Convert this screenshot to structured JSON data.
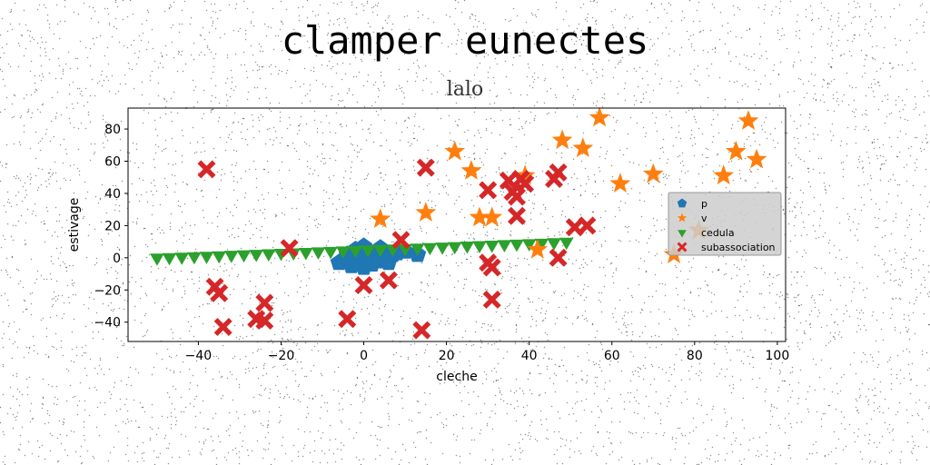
{
  "chart_data": {
    "type": "scatter",
    "title": "clamper eunectes",
    "subtitle": "lalo",
    "xlabel": "cleche",
    "ylabel": "estivage",
    "xlim": [
      -57,
      102
    ],
    "ylim": [
      -52,
      93
    ],
    "xticks": [
      -40,
      -20,
      0,
      20,
      40,
      60,
      80,
      100
    ],
    "yticks": [
      -40,
      -20,
      0,
      20,
      40,
      60,
      80
    ],
    "legend_position": "center-right",
    "series": [
      {
        "name": "p",
        "marker": "pentagon",
        "color": "#1f77b4",
        "points": [
          [
            -6,
            -3
          ],
          [
            -4,
            2
          ],
          [
            -2,
            5
          ],
          [
            0,
            7
          ],
          [
            1,
            3
          ],
          [
            -1,
            -2
          ],
          [
            0,
            -6
          ],
          [
            2,
            -4
          ],
          [
            3,
            2
          ],
          [
            4,
            6
          ],
          [
            5,
            3
          ],
          [
            6,
            -3
          ],
          [
            7,
            2
          ],
          [
            8,
            3
          ],
          [
            10,
            4
          ],
          [
            -3,
            -5
          ],
          [
            4,
            -2
          ],
          [
            13,
            2
          ]
        ]
      },
      {
        "name": "v",
        "marker": "star",
        "color": "#ff7f0e",
        "points": [
          [
            4,
            24
          ],
          [
            15,
            28
          ],
          [
            22,
            66
          ],
          [
            26,
            54
          ],
          [
            28,
            25
          ],
          [
            31,
            25
          ],
          [
            39,
            51
          ],
          [
            42,
            5
          ],
          [
            48,
            73
          ],
          [
            53,
            68
          ],
          [
            57,
            87
          ],
          [
            62,
            46
          ],
          [
            70,
            52
          ],
          [
            75,
            2
          ],
          [
            81,
            17
          ],
          [
            87,
            51
          ],
          [
            90,
            66
          ],
          [
            93,
            85
          ],
          [
            95,
            61
          ]
        ]
      },
      {
        "name": "cedula",
        "marker": "triangle-down",
        "color": "#2ca02c",
        "points": [
          [
            -50,
            0
          ],
          [
            -47,
            0.3
          ],
          [
            -44,
            0.6
          ],
          [
            -41,
            0.9
          ],
          [
            -38,
            1.2
          ],
          [
            -35,
            1.5
          ],
          [
            -32,
            1.8
          ],
          [
            -29,
            2.1
          ],
          [
            -26,
            2.4
          ],
          [
            -23,
            2.7
          ],
          [
            -20,
            3.0
          ],
          [
            -17,
            3.3
          ],
          [
            -14,
            3.6
          ],
          [
            -11,
            3.9
          ],
          [
            -8,
            4.2
          ],
          [
            -5,
            4.5
          ],
          [
            -2,
            4.8
          ],
          [
            1,
            5.1
          ],
          [
            4,
            5.4
          ],
          [
            7,
            5.7
          ],
          [
            10,
            6.0
          ],
          [
            13,
            6.3
          ],
          [
            16,
            6.6
          ],
          [
            19,
            6.9
          ],
          [
            22,
            7.2
          ],
          [
            25,
            7.5
          ],
          [
            28,
            7.8
          ],
          [
            31,
            8.1
          ],
          [
            34,
            8.4
          ],
          [
            37,
            8.7
          ],
          [
            40,
            9.0
          ],
          [
            43,
            9.3
          ],
          [
            46,
            9.6
          ],
          [
            49,
            9.9
          ]
        ]
      },
      {
        "name": "subassociation",
        "marker": "x-filled",
        "color": "#d62728",
        "points": [
          [
            -38,
            55
          ],
          [
            -36,
            -18
          ],
          [
            -35,
            -22
          ],
          [
            -34,
            -43
          ],
          [
            -26,
            -38
          ],
          [
            -24,
            -28
          ],
          [
            -24,
            -39
          ],
          [
            -18,
            6
          ],
          [
            -4,
            -38
          ],
          [
            0,
            -17
          ],
          [
            6,
            -14
          ],
          [
            9,
            11
          ],
          [
            14,
            -45
          ],
          [
            15,
            56
          ],
          [
            30,
            -3
          ],
          [
            30,
            42
          ],
          [
            31,
            -6
          ],
          [
            31,
            -26
          ],
          [
            35,
            48
          ],
          [
            36,
            41
          ],
          [
            37,
            26
          ],
          [
            37,
            38
          ],
          [
            38,
            49
          ],
          [
            39,
            46
          ],
          [
            46,
            49
          ],
          [
            47,
            53
          ],
          [
            47,
            0
          ],
          [
            51,
            19
          ],
          [
            54,
            20
          ]
        ]
      }
    ]
  }
}
